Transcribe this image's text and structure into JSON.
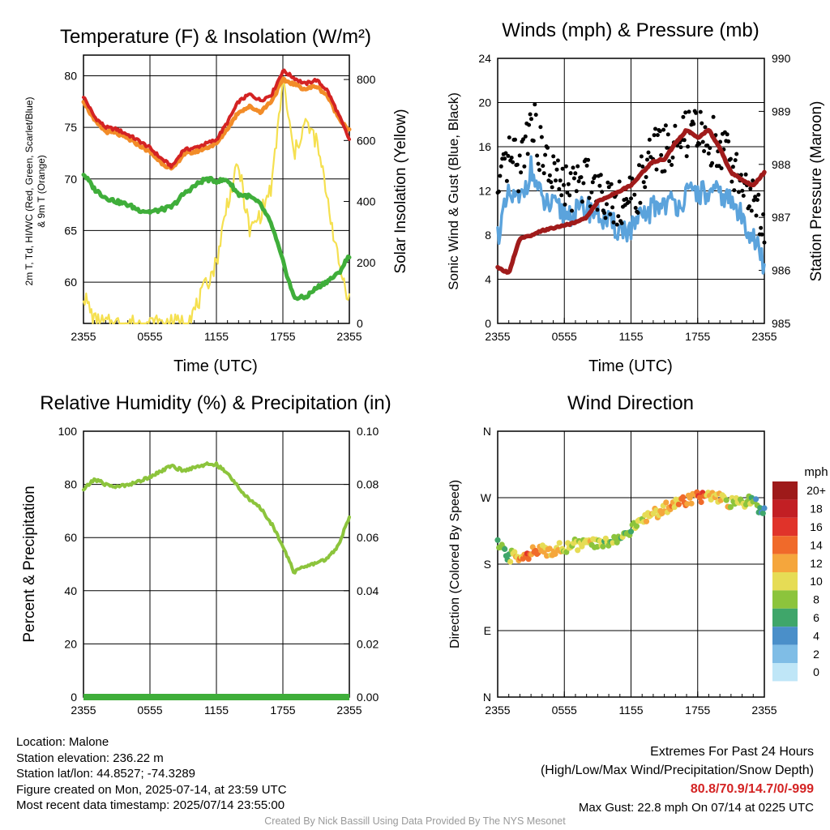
{
  "colors": {
    "temp": "#d42323",
    "heat_index": "#f28c28",
    "dewpoint": "#3fae3a",
    "nine_m_temp": "#f28c28",
    "insolation": "#f5e050",
    "wind": "#5ba3dc",
    "gust": "#000000",
    "pressure": "#a01b1b",
    "rh": "#8cc43c",
    "precip": "#3fae3a",
    "extremes": "#d42323",
    "credit": "#999999"
  },
  "x_ticks": [
    "2355",
    "0555",
    "1155",
    "1755",
    "2355"
  ],
  "panels": {
    "temperature": {
      "title": "Temperature (F) & Insolation (W/m²)",
      "xlabel": "Time (UTC)",
      "ylabel_left_line1": "2m T, Td, HI/WC (Red, Green, Scarlet/Blue)",
      "ylabel_left_line2": "& 9m T (Orange)",
      "ylabel_right": "Solar Insolation (Yellow)",
      "left_ticks": [
        "60",
        "65",
        "70",
        "75",
        "80"
      ],
      "right_ticks": [
        "0",
        "200",
        "400",
        "600",
        "800"
      ]
    },
    "winds": {
      "title": "Winds (mph) & Pressure (mb)",
      "xlabel": "Time (UTC)",
      "ylabel_left": "Sonic Wind & Gust (Blue, Black)",
      "ylabel_right": "Station Pressure (Maroon)",
      "left_ticks": [
        "0",
        "4",
        "8",
        "12",
        "16",
        "20",
        "24"
      ],
      "right_ticks": [
        "985",
        "986",
        "987",
        "988",
        "989",
        "990"
      ]
    },
    "humidity": {
      "title": "Relative Humidity (%) & Precipitation (in)",
      "ylabel_left": "Percent & Precipitation",
      "left_ticks": [
        "0",
        "20",
        "40",
        "60",
        "80",
        "100"
      ],
      "right_ticks": [
        "0.00",
        "0.02",
        "0.04",
        "0.06",
        "0.08",
        "0.10"
      ]
    },
    "direction": {
      "title": "Wind Direction",
      "ylabel_left": "Direction (Colored By Speed)",
      "left_ticks": [
        "N",
        "E",
        "S",
        "W",
        "N"
      ],
      "legend_title": "mph",
      "legend_labels": [
        "0",
        "2",
        "4",
        "6",
        "8",
        "10",
        "12",
        "14",
        "16",
        "18",
        "20+"
      ],
      "legend_colors": [
        "#bfe6f7",
        "#7fbde6",
        "#4a8fc9",
        "#3fa66a",
        "#8cc43c",
        "#e6dc55",
        "#f5a63c",
        "#f06a2a",
        "#e0332a",
        "#c21f24",
        "#9e1a1a"
      ]
    }
  },
  "station": {
    "location": "Location: Malone",
    "elevation": "Station elevation: 236.22 m",
    "latlon": "Station lat/lon: 44.8527; -74.3289",
    "created": "Figure created on Mon, 2025-07-14, at 23:59 UTC",
    "recent": "Most recent data timestamp: 2025/07/14 23:55:00"
  },
  "extremes": {
    "title": "Extremes For Past 24 Hours",
    "subtitle": "(High/Low/Max Wind/Precipitation/Snow Depth)",
    "values": "80.8/70.9/14.7/0/-999",
    "max_gust": "Max Gust: 22.8 mph On 07/14 at 0225 UTC"
  },
  "credit": "Created By Nick Bassill Using Data Provided By The NYS Mesonet",
  "chart_data": [
    {
      "type": "line",
      "title": "Temperature (F) & Insolation (W/m²)",
      "xlabel": "Time (UTC)",
      "ylabel": "2m T, Td, HI/WC (Red, Green, Scarlet/Blue) & 9m T (Orange)",
      "y2label": "Solar Insolation (Yellow)",
      "x_hours": [
        0,
        1,
        2,
        3,
        4,
        5,
        6,
        7,
        8,
        9,
        10,
        11,
        12,
        13,
        14,
        15,
        16,
        17,
        18,
        19,
        20,
        21,
        22,
        23,
        24
      ],
      "ylim": [
        56,
        82
      ],
      "y2lim": [
        0,
        880
      ],
      "series": [
        {
          "name": "2m T (Red)",
          "axis": "left",
          "values": [
            78,
            76,
            75,
            74.8,
            74.3,
            73.7,
            73,
            72,
            71.2,
            72.8,
            73,
            73.4,
            73.8,
            75.5,
            77.5,
            78.2,
            77.6,
            78.2,
            80.5,
            79.8,
            79.2,
            79.6,
            78.6,
            76.3,
            73.8
          ]
        },
        {
          "name": "9m T (Orange)",
          "axis": "left",
          "values": [
            77.6,
            75.6,
            74.6,
            74.4,
            73.9,
            73.3,
            72.6,
            71.6,
            70.9,
            72.4,
            72.6,
            73,
            73.4,
            74.9,
            76.5,
            77,
            76.5,
            77.6,
            79.6,
            79.2,
            78.7,
            79,
            78.1,
            76,
            74.7
          ]
        },
        {
          "name": "2m Td (Green)",
          "axis": "left",
          "values": [
            70.5,
            69,
            68.2,
            67.8,
            67.5,
            67,
            66.8,
            67,
            67.3,
            68.5,
            69.3,
            70,
            69.8,
            69.9,
            68.5,
            68.3,
            67.5,
            65.5,
            62,
            58.5,
            58.5,
            59.4,
            60.1,
            60.8,
            62.6
          ]
        },
        {
          "name": "Solar Insolation (Yellow)",
          "axis": "right",
          "values": [
            95,
            8,
            0,
            0,
            0,
            0,
            0,
            0,
            0,
            5,
            40,
            120,
            200,
            400,
            520,
            300,
            360,
            450,
            800,
            550,
            660,
            600,
            420,
            200,
            80
          ]
        }
      ]
    },
    {
      "type": "line",
      "title": "Winds (mph) & Pressure (mb)",
      "xlabel": "Time (UTC)",
      "ylabel": "Sonic Wind & Gust (Blue, Black)",
      "y2label": "Station Pressure (Maroon)",
      "x_hours": [
        0,
        1,
        2,
        3,
        4,
        5,
        6,
        7,
        8,
        9,
        10,
        11,
        12,
        13,
        14,
        15,
        16,
        17,
        18,
        19,
        20,
        21,
        22,
        23,
        24
      ],
      "ylim": [
        0,
        24
      ],
      "y2lim": [
        985,
        990
      ],
      "series": [
        {
          "name": "Sonic Wind (Blue)",
          "axis": "left",
          "values": [
            8,
            11.5,
            11,
            14,
            11,
            10.5,
            10,
            10,
            10.5,
            10,
            9,
            8.5,
            8.5,
            9.5,
            10.5,
            11,
            10.8,
            11.5,
            12,
            11.5,
            11.8,
            11,
            9.5,
            8,
            5
          ]
        },
        {
          "name": "Gust (Black)",
          "axis": "left",
          "values": [
            11,
            15,
            14,
            19,
            15,
            13.5,
            12,
            12.5,
            13,
            12.5,
            11.5,
            11,
            11,
            13,
            15.5,
            16,
            16,
            17,
            17.5,
            16.5,
            16.5,
            14.5,
            13,
            11,
            8
          ]
        },
        {
          "name": "Station Pressure (Maroon)",
          "axis": "right",
          "values": [
            986.05,
            985.95,
            986.6,
            986.65,
            986.75,
            986.8,
            986.85,
            986.9,
            987,
            987.3,
            987.4,
            987.5,
            987.6,
            987.85,
            988.05,
            988.1,
            988.4,
            988.65,
            988.5,
            988.65,
            988.3,
            987.85,
            987.7,
            987.6,
            987.85
          ]
        }
      ]
    },
    {
      "type": "line",
      "title": "Relative Humidity (%) & Precipitation (in)",
      "ylabel": "Percent & Precipitation",
      "x_hours": [
        0,
        1,
        2,
        3,
        4,
        5,
        6,
        7,
        8,
        9,
        10,
        11,
        12,
        13,
        14,
        15,
        16,
        17,
        18,
        19,
        20,
        21,
        22,
        23,
        24
      ],
      "ylim": [
        0,
        100
      ],
      "y2lim": [
        0,
        0.1
      ],
      "series": [
        {
          "name": "Relative Humidity",
          "axis": "left",
          "values": [
            78,
            82,
            80,
            79,
            80,
            81,
            83,
            85,
            87,
            85,
            86.5,
            87.5,
            87.5,
            84,
            79,
            74,
            71,
            65,
            57,
            47,
            49,
            50.5,
            52,
            57,
            68
          ]
        },
        {
          "name": "Precipitation",
          "axis": "right",
          "values": [
            0,
            0,
            0,
            0,
            0,
            0,
            0,
            0,
            0,
            0,
            0,
            0,
            0,
            0,
            0,
            0,
            0,
            0,
            0,
            0,
            0,
            0,
            0,
            0,
            0
          ]
        }
      ]
    },
    {
      "type": "scatter",
      "title": "Wind Direction",
      "ylabel": "Direction (Colored By Speed)",
      "x_hours": [
        0,
        1,
        2,
        3,
        4,
        5,
        6,
        7,
        8,
        9,
        10,
        11,
        12,
        13,
        14,
        15,
        16,
        17,
        18,
        19,
        20,
        21,
        22,
        23,
        24
      ],
      "ylim_degrees": [
        0,
        360
      ],
      "series": [
        {
          "name": "Direction (deg)",
          "values": [
            205,
            190,
            192,
            195,
            198,
            200,
            203,
            206,
            208,
            207,
            210,
            218,
            225,
            240,
            248,
            255,
            262,
            268,
            272,
            270,
            268,
            262,
            262,
            268,
            248
          ]
        },
        {
          "name": "Speed (mph)",
          "values": [
            7,
            7,
            12,
            14,
            12,
            11,
            10,
            9,
            10,
            9,
            8,
            8,
            8,
            10,
            11,
            11,
            12,
            13,
            14,
            12,
            11,
            10,
            9,
            7,
            5
          ]
        }
      ]
    }
  ]
}
